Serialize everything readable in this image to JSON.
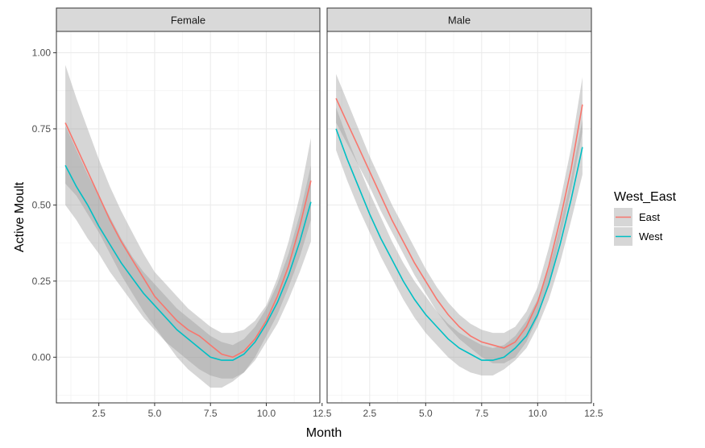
{
  "chart_data": {
    "type": "line",
    "xlabel": "Month",
    "ylabel": "Active Moult",
    "xlim": [
      0.6,
      12.4
    ],
    "ylim": [
      -0.15,
      1.07
    ],
    "x_ticks": [
      2.5,
      5.0,
      7.5,
      10.0,
      12.5
    ],
    "x_tick_labels": [
      "2.5",
      "5.0",
      "7.5",
      "10.0",
      "12.5"
    ],
    "y_ticks": [
      0.0,
      0.25,
      0.5,
      0.75,
      1.0
    ],
    "y_tick_labels": [
      "0.00",
      "0.25",
      "0.50",
      "0.75",
      "1.00"
    ],
    "legend": {
      "title": "West_East",
      "position": "right",
      "entries": [
        {
          "name": "East",
          "color": "#F8766D"
        },
        {
          "name": "West",
          "color": "#00BFC4"
        }
      ]
    },
    "panels": [
      {
        "strip": "Female",
        "series": [
          {
            "name": "East",
            "color": "#F8766D",
            "x": [
              1,
              1.5,
              2,
              2.5,
              3,
              3.5,
              4,
              4.5,
              5,
              5.5,
              6,
              6.5,
              7,
              7.5,
              8,
              8.5,
              9,
              9.5,
              10,
              10.5,
              11,
              11.5,
              12
            ],
            "y": [
              0.77,
              0.69,
              0.61,
              0.53,
              0.45,
              0.38,
              0.32,
              0.26,
              0.2,
              0.16,
              0.12,
              0.09,
              0.07,
              0.04,
              0.01,
              0.0,
              0.02,
              0.06,
              0.12,
              0.2,
              0.3,
              0.43,
              0.58
            ],
            "lower": [
              0.57,
              0.53,
              0.47,
              0.41,
              0.34,
              0.27,
              0.21,
              0.15,
              0.1,
              0.05,
              0.0,
              -0.04,
              -0.07,
              -0.1,
              -0.1,
              -0.08,
              -0.05,
              0.0,
              0.07,
              0.14,
              0.23,
              0.33,
              0.45
            ],
            "upper": [
              0.96,
              0.85,
              0.75,
              0.65,
              0.56,
              0.48,
              0.41,
              0.34,
              0.28,
              0.24,
              0.2,
              0.16,
              0.13,
              0.1,
              0.08,
              0.08,
              0.09,
              0.12,
              0.17,
              0.26,
              0.38,
              0.53,
              0.72
            ]
          },
          {
            "name": "West",
            "color": "#00BFC4",
            "x": [
              1,
              1.5,
              2,
              2.5,
              3,
              3.5,
              4,
              4.5,
              5,
              5.5,
              6,
              6.5,
              7,
              7.5,
              8,
              8.5,
              9,
              9.5,
              10,
              10.5,
              11,
              11.5,
              12
            ],
            "y": [
              0.63,
              0.56,
              0.5,
              0.43,
              0.37,
              0.31,
              0.26,
              0.21,
              0.17,
              0.13,
              0.09,
              0.06,
              0.03,
              0.0,
              -0.01,
              -0.01,
              0.01,
              0.05,
              0.11,
              0.18,
              0.27,
              0.38,
              0.51
            ],
            "lower": [
              0.5,
              0.45,
              0.39,
              0.34,
              0.28,
              0.23,
              0.18,
              0.13,
              0.09,
              0.05,
              0.02,
              -0.01,
              -0.04,
              -0.06,
              -0.07,
              -0.07,
              -0.05,
              -0.01,
              0.05,
              0.11,
              0.19,
              0.28,
              0.38
            ],
            "upper": [
              0.76,
              0.68,
              0.6,
              0.53,
              0.46,
              0.39,
              0.33,
              0.28,
              0.24,
              0.2,
              0.16,
              0.13,
              0.1,
              0.07,
              0.05,
              0.04,
              0.06,
              0.1,
              0.16,
              0.24,
              0.34,
              0.47,
              0.63
            ]
          }
        ]
      },
      {
        "strip": "Male",
        "series": [
          {
            "name": "East",
            "color": "#F8766D",
            "x": [
              1,
              1.5,
              2,
              2.5,
              3,
              3.5,
              4,
              4.5,
              5,
              5.5,
              6,
              6.5,
              7,
              7.5,
              8,
              8.5,
              9,
              9.5,
              10,
              10.5,
              11,
              11.5,
              12
            ],
            "y": [
              0.85,
              0.77,
              0.69,
              0.61,
              0.53,
              0.45,
              0.38,
              0.31,
              0.25,
              0.19,
              0.14,
              0.1,
              0.07,
              0.05,
              0.04,
              0.03,
              0.05,
              0.1,
              0.18,
              0.3,
              0.45,
              0.62,
              0.83
            ],
            "lower": [
              0.77,
              0.7,
              0.63,
              0.56,
              0.48,
              0.41,
              0.34,
              0.27,
              0.21,
              0.15,
              0.1,
              0.06,
              0.03,
              0.0,
              -0.02,
              -0.02,
              0.0,
              0.05,
              0.13,
              0.24,
              0.39,
              0.55,
              0.74
            ],
            "upper": [
              0.93,
              0.84,
              0.75,
              0.66,
              0.58,
              0.5,
              0.43,
              0.36,
              0.29,
              0.23,
              0.18,
              0.14,
              0.11,
              0.09,
              0.08,
              0.08,
              0.1,
              0.15,
              0.23,
              0.36,
              0.51,
              0.69,
              0.92
            ]
          },
          {
            "name": "West",
            "color": "#00BFC4",
            "x": [
              1,
              1.5,
              2,
              2.5,
              3,
              3.5,
              4,
              4.5,
              5,
              5.5,
              6,
              6.5,
              7,
              7.5,
              8,
              8.5,
              9,
              9.5,
              10,
              10.5,
              11,
              11.5,
              12
            ],
            "y": [
              0.75,
              0.65,
              0.56,
              0.47,
              0.39,
              0.32,
              0.25,
              0.19,
              0.14,
              0.1,
              0.06,
              0.03,
              0.01,
              -0.01,
              -0.01,
              0.0,
              0.03,
              0.07,
              0.14,
              0.24,
              0.37,
              0.52,
              0.69
            ],
            "lower": [
              0.68,
              0.58,
              0.49,
              0.41,
              0.33,
              0.26,
              0.19,
              0.13,
              0.08,
              0.04,
              0.0,
              -0.03,
              -0.05,
              -0.06,
              -0.06,
              -0.04,
              -0.01,
              0.03,
              0.1,
              0.19,
              0.31,
              0.45,
              0.6
            ],
            "upper": [
              0.82,
              0.72,
              0.63,
              0.54,
              0.46,
              0.38,
              0.31,
              0.25,
              0.2,
              0.15,
              0.11,
              0.08,
              0.06,
              0.04,
              0.03,
              0.04,
              0.07,
              0.12,
              0.19,
              0.29,
              0.43,
              0.59,
              0.78
            ]
          }
        ]
      }
    ]
  }
}
